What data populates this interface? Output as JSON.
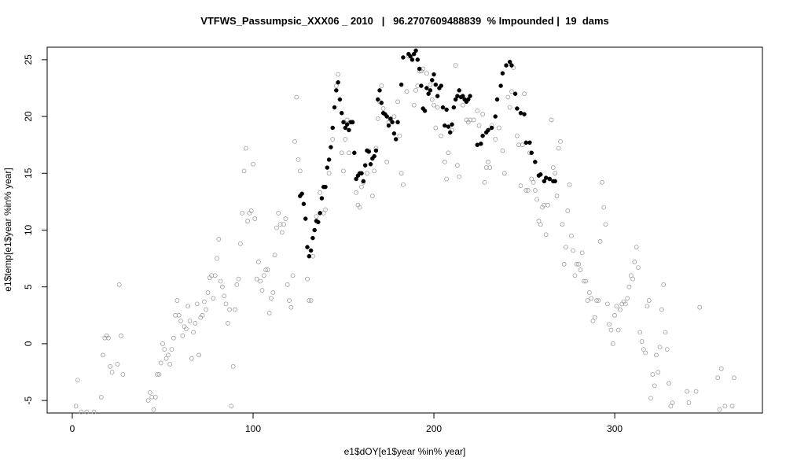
{
  "chart_data": {
    "type": "scatter",
    "title": "VTFWS_Passumpsic_XXX06 _ 2010   |   96.2707609488839  % Impounded |  19  dams",
    "x_label": "e1$dOY[e1$year %in% year]",
    "y_label": "e1$temp[e1$year %in% year]",
    "xlim": [
      -13.9,
      381.7
    ],
    "ylim": [
      -6.1,
      26.1
    ],
    "xticks": [
      0,
      100,
      200,
      300
    ],
    "yticks": [
      -5,
      0,
      5,
      10,
      15,
      20,
      25
    ],
    "series": [
      {
        "color": "#a0a0a0",
        "marker": "open",
        "x": [
          2,
          3,
          5,
          8,
          12,
          16,
          17,
          18,
          19,
          20,
          21,
          22,
          25,
          26,
          27,
          28,
          42,
          43,
          44,
          45,
          46,
          47,
          48,
          49,
          50,
          51,
          52,
          53,
          54,
          55,
          56,
          57,
          58,
          59,
          60,
          61,
          62,
          63,
          64,
          65,
          66,
          67,
          68,
          69,
          70,
          71,
          72,
          73,
          74,
          75,
          76,
          77,
          78,
          79,
          80,
          81,
          82,
          83,
          84,
          85,
          86,
          87,
          88,
          89,
          90,
          91,
          92,
          93,
          94,
          95,
          96,
          97,
          98,
          99,
          100,
          101,
          102,
          103,
          104,
          105,
          106,
          107,
          108,
          109,
          110,
          111,
          112,
          113,
          114,
          115,
          116,
          117,
          118,
          119,
          120,
          121,
          122,
          123,
          124,
          125,
          126,
          130,
          131,
          132,
          133,
          135,
          137,
          139,
          140,
          142,
          144,
          146,
          147,
          149,
          150,
          151,
          152,
          153,
          155,
          157,
          158,
          159,
          160,
          161,
          163,
          164,
          166,
          167,
          168,
          169,
          170,
          171,
          172,
          174,
          175,
          176,
          178,
          180,
          181,
          182,
          183,
          185,
          186,
          189,
          190,
          191,
          192,
          193,
          194,
          196,
          198,
          199,
          200,
          201,
          202,
          204,
          206,
          207,
          208,
          210,
          212,
          213,
          214,
          216,
          218,
          219,
          220,
          222,
          224,
          225,
          227,
          228,
          229,
          230,
          231,
          232,
          234,
          236,
          238,
          239,
          241,
          242,
          243,
          244,
          246,
          247,
          248,
          249,
          250,
          251,
          252,
          253,
          254,
          255,
          256,
          257,
          258,
          259,
          260,
          261,
          262,
          263,
          264,
          265,
          266,
          267,
          268,
          269,
          270,
          271,
          272,
          273,
          274,
          275,
          276,
          277,
          278,
          279,
          280,
          281,
          282,
          283,
          284,
          285,
          286,
          287,
          288,
          289,
          290,
          291,
          292,
          293,
          294,
          295,
          296,
          297,
          298,
          299,
          300,
          301,
          302,
          303,
          304,
          305,
          306,
          307,
          308,
          309,
          310,
          311,
          312,
          313,
          314,
          315,
          316,
          317,
          318,
          319,
          320,
          321,
          322,
          323,
          324,
          325,
          326,
          327,
          328,
          329,
          330,
          331,
          332,
          340,
          341,
          345,
          347,
          357,
          358,
          359,
          361,
          365,
          366
        ],
        "values": [
          -5.5,
          -3.2,
          -6,
          -6,
          -6,
          -4.7,
          -1,
          0.5,
          0.7,
          0.5,
          -2,
          -2.5,
          -1.8,
          5.2,
          0.7,
          -2.7,
          -5,
          -4.3,
          -4.7,
          -5.8,
          -4.7,
          -2.7,
          -2.7,
          -1.7,
          0,
          -0.5,
          -1.3,
          -1,
          -1.8,
          -0.5,
          0.5,
          2.5,
          3.8,
          2.5,
          2,
          0.7,
          1.5,
          1.3,
          3.3,
          2,
          -1.3,
          1,
          1.8,
          3.5,
          -1,
          2.3,
          2.5,
          3.7,
          3,
          4.5,
          5.8,
          6,
          4,
          6,
          7.5,
          9.2,
          5.5,
          5,
          4.2,
          3.5,
          1.8,
          3,
          -5.5,
          -2,
          3,
          5.2,
          5.7,
          8.8,
          11.5,
          15.2,
          17.2,
          10.8,
          11.5,
          11.7,
          15.8,
          11,
          5.7,
          7.2,
          5.5,
          4.7,
          6,
          6.5,
          6.5,
          2.7,
          4,
          4.5,
          7.8,
          10.2,
          11.5,
          10.5,
          9.8,
          10.5,
          11,
          5.2,
          3.8,
          3.2,
          6,
          17.8,
          21.7,
          16.2,
          15.2,
          5.7,
          3.8,
          3.8,
          7.7,
          11.2,
          13.3,
          11.5,
          11.8,
          15,
          18,
          22.7,
          23.7,
          16.8,
          15.2,
          18,
          19.7,
          16.8,
          19.5,
          13.3,
          12.2,
          12,
          13.8,
          14.2,
          15,
          17,
          13,
          15.2,
          17.2,
          19.8,
          21.3,
          22.7,
          20.7,
          16,
          19.5,
          19.7,
          20,
          21.3,
          18.3,
          15,
          14,
          22.2,
          25.3,
          21,
          22.3,
          22.7,
          24,
          24,
          24.2,
          23.8,
          22.8,
          21.5,
          21,
          19,
          20.8,
          18.3,
          16,
          14.5,
          16.8,
          18.8,
          24.5,
          15.7,
          14.7,
          21,
          19.7,
          19.5,
          19.7,
          19.7,
          20.5,
          19.2,
          20.2,
          14.2,
          15.5,
          16,
          15.5,
          19.2,
          18,
          19,
          17,
          15,
          21.7,
          20.8,
          22.2,
          24.3,
          18.3,
          17.5,
          13.9,
          17.5,
          22,
          13.5,
          13.5,
          16.8,
          14.5,
          14.2,
          13.5,
          12.7,
          10.8,
          10.5,
          12,
          12.2,
          9.6,
          12.2,
          14.5,
          19.7,
          15.5,
          15,
          13,
          17.2,
          17.8,
          10.5,
          7,
          8.5,
          11.7,
          14,
          9.5,
          8.2,
          6,
          7,
          7,
          6.5,
          8,
          5.5,
          5.5,
          3.8,
          4.5,
          4,
          2,
          2.3,
          3.8,
          3.8,
          9,
          14.2,
          12,
          10.5,
          3.5,
          1.7,
          1.2,
          0,
          2.5,
          3.3,
          1.2,
          3,
          3.5,
          3.7,
          3.5,
          4,
          5,
          6,
          5.7,
          7.2,
          8.5,
          6.7,
          1,
          0.2,
          -0.5,
          -0.8,
          3.3,
          3.8,
          -4.8,
          -2.7,
          -3.7,
          -1,
          -2.5,
          -0.3,
          3,
          5.2,
          1,
          -0.5,
          -3.5,
          -5.5,
          -5.2,
          -4.2,
          -5.2,
          -4.2,
          3.2,
          -3,
          -5.8,
          -2.2,
          -5.5,
          -5.5,
          -3
        ]
      },
      {
        "color": "#000000",
        "marker": "filled",
        "x": [
          126,
          127,
          128,
          129,
          130,
          131,
          132,
          133,
          134,
          135,
          136,
          137,
          138,
          139,
          140,
          141,
          142,
          143,
          144,
          145,
          146,
          147,
          148,
          149,
          150,
          151,
          152,
          153,
          154,
          155,
          156,
          157,
          158,
          159,
          160,
          161,
          162,
          163,
          164,
          165,
          166,
          167,
          168,
          169,
          170,
          171,
          172,
          173,
          174,
          175,
          176,
          177,
          178,
          179,
          180,
          182,
          183,
          186,
          187,
          188,
          189,
          190,
          191,
          192,
          193,
          194,
          195,
          196,
          197,
          198,
          199,
          200,
          201,
          202,
          203,
          204,
          205,
          206,
          207,
          208,
          209,
          210,
          211,
          212,
          213,
          214,
          215,
          216,
          217,
          218,
          219,
          220,
          224,
          226,
          227,
          229,
          230,
          232,
          234,
          235,
          237,
          238,
          240,
          242,
          243,
          245,
          246,
          248,
          250,
          251,
          253,
          254,
          256,
          258,
          259,
          261,
          262,
          264,
          266,
          267
        ],
        "values": [
          13,
          13.2,
          12.3,
          11,
          8.5,
          7.7,
          8.2,
          9.3,
          10,
          10.8,
          10.7,
          11.5,
          12.8,
          13.8,
          13.8,
          15.5,
          16.2,
          17.3,
          19,
          20.8,
          22.3,
          23,
          21.5,
          20.3,
          19.5,
          19,
          19.3,
          18.8,
          19.5,
          19.5,
          16.8,
          14.5,
          14.8,
          15,
          15,
          14.3,
          15.7,
          17,
          16.9,
          15.8,
          16.3,
          16.5,
          17,
          21.5,
          22.3,
          21.2,
          20.3,
          20.2,
          20,
          19.2,
          19.8,
          19.5,
          18.5,
          18,
          19.5,
          22.8,
          25.2,
          25.5,
          25.3,
          25,
          25.5,
          25.8,
          25,
          24.2,
          22.7,
          20.7,
          20.5,
          22.5,
          22,
          22.3,
          23.2,
          23.7,
          22.8,
          21.8,
          22.5,
          22.7,
          20.8,
          19.2,
          20.6,
          19.1,
          18.6,
          19.3,
          20.8,
          21.5,
          21.8,
          22.3,
          21.7,
          21.8,
          21.5,
          21.3,
          21.5,
          21.8,
          17.5,
          17.6,
          18.3,
          18.6,
          18.8,
          19,
          20,
          21.5,
          22.7,
          23.8,
          24.5,
          24.8,
          24.5,
          22,
          20.7,
          20.3,
          20.2,
          17.7,
          17.7,
          16.8,
          16,
          14.8,
          14.9,
          14.3,
          14.6,
          14.5,
          14.3,
          14.3
        ]
      }
    ]
  }
}
